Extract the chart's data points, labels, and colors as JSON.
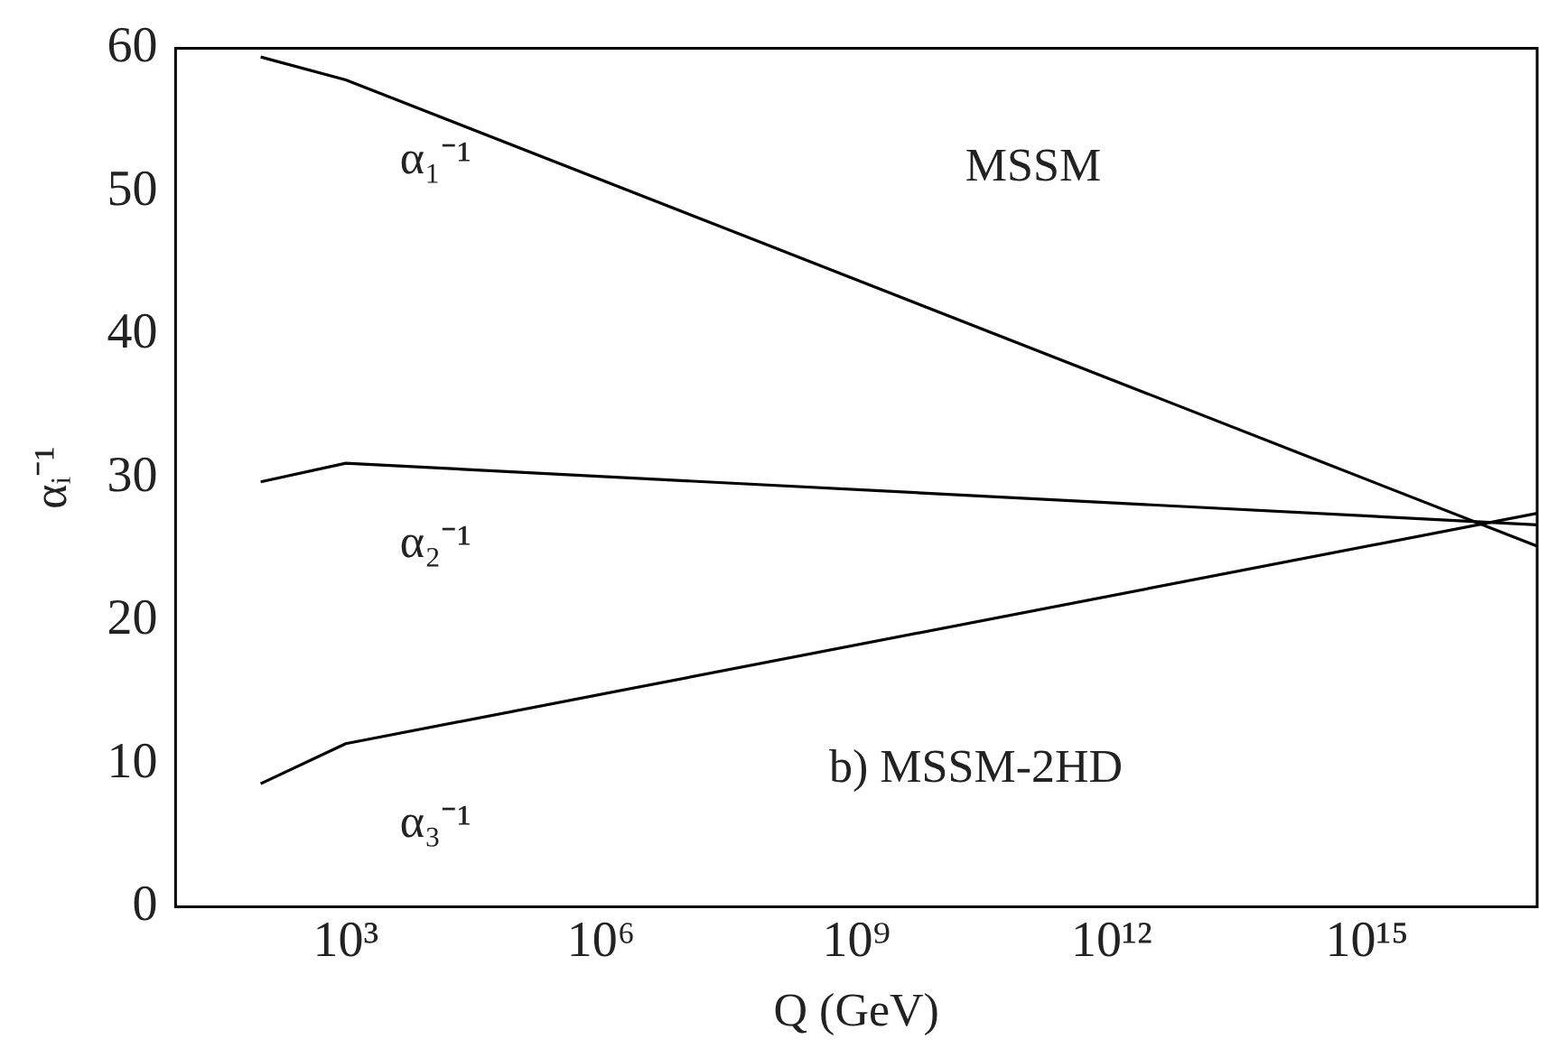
{
  "chart_data": {
    "type": "line",
    "xlabel": "Q (GeV)",
    "ylabel": "αᵢ⁻¹",
    "log": "x",
    "xlim": [
      10,
      1e+17
    ],
    "xticks": [
      {
        "value": 1000,
        "label": "10³"
      },
      {
        "value": 1000000,
        "label": "10⁶"
      },
      {
        "value": 1000000000,
        "label": "10⁹"
      },
      {
        "value": 1000000000000,
        "label": "10¹²"
      },
      {
        "value": 1000000000000000,
        "label": "10¹⁵"
      }
    ],
    "ylim": [
      0,
      60
    ],
    "yticks": [
      0,
      10,
      20,
      30,
      40,
      50,
      60
    ],
    "grid": false,
    "legend": false,
    "marker": "none",
    "line_style": "solid",
    "series": [
      {
        "name": "α₁⁻¹",
        "color": "#000000",
        "x": [
          100,
          1000,
          1e+17
        ],
        "values": [
          59.4,
          57.8,
          25.2
        ]
      },
      {
        "name": "α₂⁻¹",
        "color": "#000000",
        "x": [
          100,
          1000,
          1e+17
        ],
        "values": [
          29.7,
          31.0,
          26.7
        ]
      },
      {
        "name": "α₃⁻¹",
        "color": "#000000",
        "x": [
          100,
          1000,
          1e+17
        ],
        "values": [
          8.6,
          11.4,
          27.5
        ]
      }
    ],
    "annotations": [
      "b) MSSM-2HD",
      "MSSM"
    ]
  }
}
